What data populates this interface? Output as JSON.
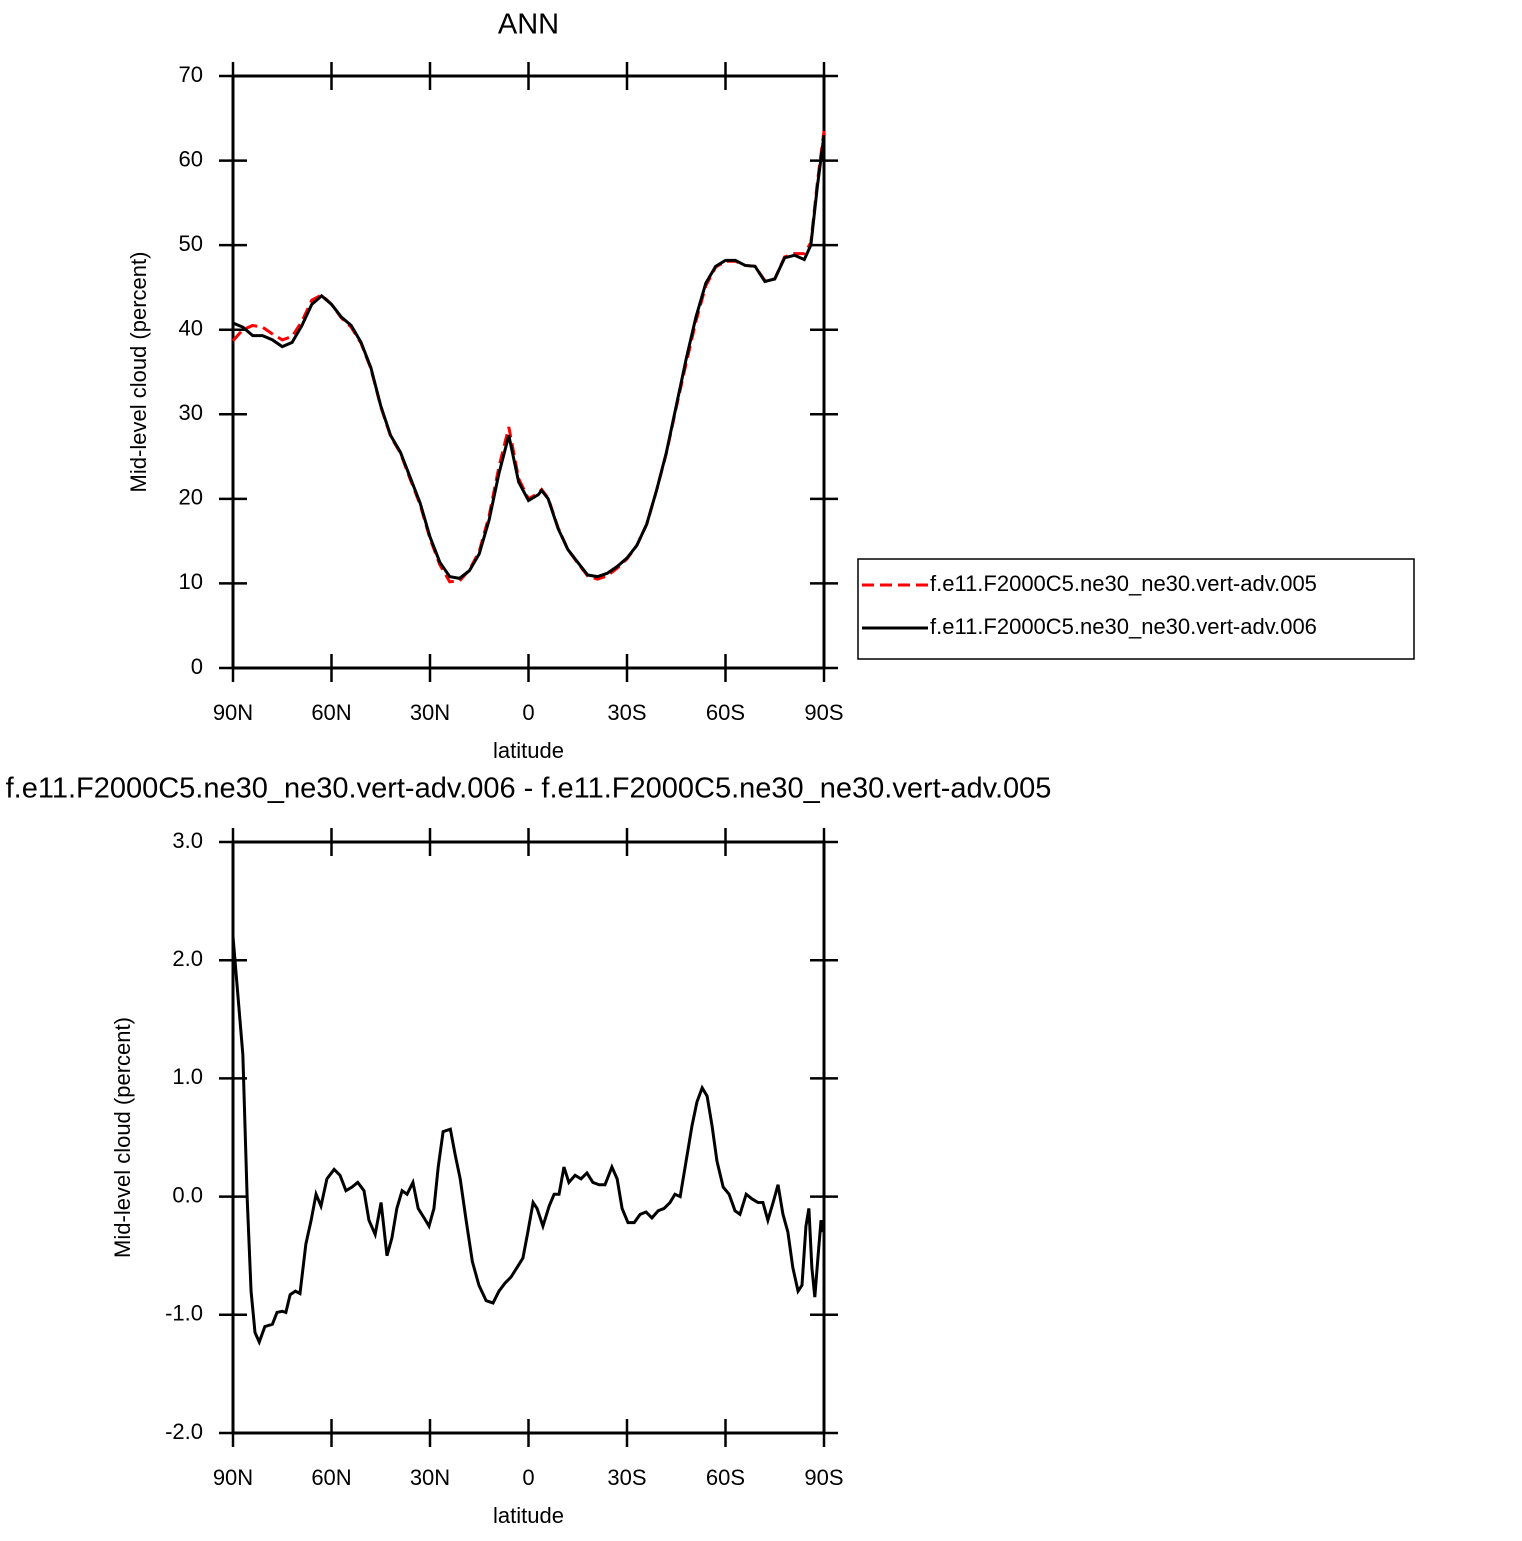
{
  "chart_data": [
    {
      "type": "line",
      "title": "ANN",
      "xlabel": "latitude",
      "ylabel": "Mid-level cloud (percent)",
      "x": [
        90,
        87,
        84,
        81,
        78,
        75,
        72,
        69,
        66,
        63,
        60,
        57,
        54,
        51,
        48,
        45,
        42,
        39,
        36,
        33,
        30,
        27,
        24,
        21,
        18,
        15,
        12,
        9,
        6,
        3,
        0,
        -3,
        -4,
        -6,
        -9,
        -12,
        -15,
        -18,
        -21,
        -24,
        -27,
        -30,
        -33,
        -36,
        -39,
        -42,
        -45,
        -48,
        -51,
        -54,
        -57,
        -60,
        -63,
        -66,
        -69,
        -72,
        -75,
        -78,
        -81,
        -84,
        -86,
        -88,
        -90
      ],
      "series": [
        {
          "name": "f.e11.F2000C5.ne30_ne30.vert-adv.005",
          "color": "#ff0000",
          "line_style": "dashed",
          "values": [
            38.7,
            40.0,
            40.5,
            40.3,
            39.5,
            38.8,
            39.2,
            41.0,
            43.5,
            44.1,
            43.0,
            41.4,
            40.3,
            38.4,
            35.4,
            30.9,
            27.4,
            25.4,
            22.3,
            19.3,
            15.3,
            12.2,
            10.2,
            10.3,
            11.6,
            13.8,
            18.0,
            23.8,
            28.5,
            22.4,
            20.0,
            20.7,
            21.1,
            20.1,
            16.6,
            14.0,
            12.4,
            10.9,
            10.5,
            10.9,
            11.8,
            12.9,
            14.5,
            17.0,
            21.0,
            25.4,
            30.8,
            36.0,
            41.0,
            45.2,
            47.4,
            48.1,
            48.1,
            47.6,
            47.5,
            45.8,
            46.0,
            48.6,
            49.0,
            49.0,
            50.3,
            57.5,
            63.5
          ]
        },
        {
          "name": "f.e11.F2000C5.ne30_ne30.vert-adv.006",
          "color": "#000000",
          "line_style": "solid",
          "values": [
            40.8,
            40.3,
            39.3,
            39.3,
            38.8,
            38.0,
            38.5,
            40.5,
            43.0,
            44.0,
            43.0,
            41.5,
            40.5,
            38.5,
            35.5,
            31.0,
            27.5,
            25.5,
            22.5,
            19.5,
            15.5,
            12.5,
            10.8,
            10.6,
            11.5,
            13.5,
            17.5,
            23.0,
            27.5,
            22.0,
            19.8,
            20.5,
            21.0,
            20.0,
            16.5,
            14.0,
            12.5,
            11.0,
            10.8,
            11.2,
            12.0,
            13.0,
            14.5,
            17.0,
            21.0,
            25.5,
            31.0,
            36.5,
            41.5,
            45.5,
            47.5,
            48.2,
            48.2,
            47.6,
            47.5,
            45.7,
            46.0,
            48.5,
            48.8,
            48.3,
            50.0,
            57.0,
            63.0
          ]
        }
      ],
      "xlim": [
        90,
        -90
      ],
      "xticks": [
        {
          "value": 90,
          "label": "90N"
        },
        {
          "value": 60,
          "label": "60N"
        },
        {
          "value": 30,
          "label": "30N"
        },
        0,
        {
          "value": -30,
          "label": "30S"
        },
        {
          "value": -60,
          "label": "60S"
        },
        {
          "value": -90,
          "label": "90S"
        }
      ],
      "ylim": [
        0,
        70
      ],
      "yticks": [
        0,
        10,
        20,
        30,
        40,
        50,
        60,
        70
      ],
      "legend": "right"
    },
    {
      "type": "line",
      "title": "f.e11.F2000C5.ne30_ne30.vert-adv.006 - f.e11.F2000C5.ne30_ne30.vert-adv.005",
      "xlabel": "latitude",
      "ylabel": "Mid-level cloud (percent)",
      "x": [
        90,
        88.5,
        87,
        85.7,
        84.5,
        83.3,
        82,
        80.3,
        78,
        76.6,
        75,
        73.9,
        72.6,
        71,
        69.6,
        67.8,
        66.2,
        64.7,
        63.2,
        61.4,
        59.2,
        57.4,
        55.6,
        53.8,
        52,
        50.1,
        48.6,
        46.7,
        44.9,
        43.1,
        41.6,
        40.1,
        38.5,
        37,
        35.2,
        33.6,
        31.8,
        30.3,
        28.8,
        27.5,
        26,
        23.8,
        22.3,
        20.8,
        19,
        17.1,
        15.1,
        12.9,
        10.8,
        9,
        7.1,
        5.3,
        3.5,
        1.7,
        0.2,
        -1.4,
        -2.6,
        -4.4,
        -6.3,
        -7.8,
        -9.3,
        -10.8,
        -12.3,
        -14.2,
        -16,
        -17.8,
        -19.6,
        -21.5,
        -23.3,
        -25.4,
        -27,
        -28.5,
        -30.3,
        -32.2,
        -34,
        -35.8,
        -37.6,
        -39.5,
        -41.3,
        -43.1,
        -44.6,
        -46.2,
        -48,
        -49.8,
        -51.3,
        -52.9,
        -54.4,
        -55.9,
        -57.4,
        -59.3,
        -61.1,
        -62.9,
        -64.4,
        -66.3,
        -68.1,
        -69.9,
        -71.4,
        -72.9,
        -74.5,
        -76,
        -77.5,
        -79,
        -80.5,
        -82.1,
        -83.3,
        -84.5,
        -85.4,
        -86.3,
        -87.2,
        -88.2,
        -89.1,
        -89.7
      ],
      "color": "#000000",
      "values": [
        2.2,
        1.7,
        1.2,
        0,
        -0.8,
        -1.15,
        -1.23,
        -1.1,
        -1.08,
        -0.98,
        -0.97,
        -0.98,
        -0.83,
        -0.8,
        -0.82,
        -0.4,
        -0.2,
        0.02,
        -0.08,
        0.15,
        0.23,
        0.18,
        0.05,
        0.08,
        0.12,
        0.05,
        -0.2,
        -0.32,
        -0.05,
        -0.5,
        -0.35,
        -0.1,
        0.05,
        0.02,
        0.12,
        -0.1,
        -0.18,
        -0.25,
        -0.1,
        0.25,
        0.55,
        0.57,
        0.35,
        0.15,
        -0.2,
        -0.55,
        -0.75,
        -0.88,
        -0.9,
        -0.8,
        -0.73,
        -0.68,
        -0.6,
        -0.52,
        -0.3,
        -0.05,
        -0.1,
        -0.25,
        -0.08,
        0.02,
        0.02,
        0.25,
        0.12,
        0.18,
        0.15,
        0.2,
        0.12,
        0.1,
        0.1,
        0.25,
        0.15,
        -0.1,
        -0.22,
        -0.22,
        -0.15,
        -0.13,
        -0.18,
        -0.12,
        -0.1,
        -0.05,
        0.02,
        0,
        0.3,
        0.6,
        0.8,
        0.92,
        0.85,
        0.6,
        0.3,
        0.08,
        0.02,
        -0.12,
        -0.15,
        0.02,
        -0.02,
        -0.05,
        -0.05,
        -0.2,
        -0.05,
        0.1,
        -0.15,
        -0.3,
        -0.6,
        -0.8,
        -0.75,
        -0.25,
        -0.1,
        -0.6,
        -0.85,
        -0.5,
        -0.2,
        -0.3
      ],
      "xlim": [
        90,
        -90
      ],
      "xticks": [
        {
          "value": 90,
          "label": "90N"
        },
        {
          "value": 60,
          "label": "60N"
        },
        {
          "value": 30,
          "label": "30N"
        },
        0,
        {
          "value": -30,
          "label": "30S"
        },
        {
          "value": -60,
          "label": "60S"
        },
        {
          "value": -90,
          "label": "90S"
        }
      ],
      "ylim": [
        -2,
        3
      ],
      "yticks": [
        {
          "value": -2,
          "label": "-2.0"
        },
        {
          "value": -1,
          "label": "-1.0"
        },
        {
          "value": 0,
          "label": "0.0"
        },
        {
          "value": 1,
          "label": "1.0"
        },
        {
          "value": 2,
          "label": "2.0"
        },
        {
          "value": 3,
          "label": "3.0"
        }
      ]
    }
  ]
}
